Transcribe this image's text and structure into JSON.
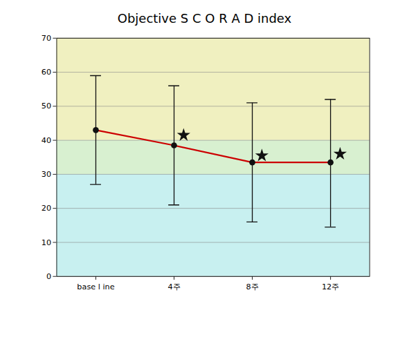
{
  "chart_data": {
    "type": "line",
    "title": "Objective S C O R A D  index",
    "categories": [
      "base l ine",
      "4주",
      "8주",
      "12주"
    ],
    "values": [
      43.0,
      38.5,
      33.5,
      33.5
    ],
    "color": "#cc0000",
    "marker": "circle",
    "error_bars": {
      "upper": [
        59.0,
        56.0,
        51.0,
        52.0
      ],
      "lower": [
        27.0,
        21.0,
        16.0,
        14.5
      ],
      "color": "#111111"
    },
    "stars": {
      "categories": [
        "4주",
        "8주",
        "12주"
      ],
      "values": [
        41.5,
        35.5,
        36.0
      ],
      "marker": "star",
      "color": "#111111"
    },
    "bands": [
      {
        "from": 0,
        "to": 30,
        "color": "#c8f0f0"
      },
      {
        "from": 30,
        "to": 40,
        "color": "#d8f0d0"
      },
      {
        "from": 40,
        "to": 70,
        "color": "#f0f0c0"
      }
    ],
    "ylim": [
      0,
      70
    ],
    "yticks": [
      0,
      10,
      20,
      30,
      40,
      50,
      60,
      70
    ],
    "grid": true
  }
}
